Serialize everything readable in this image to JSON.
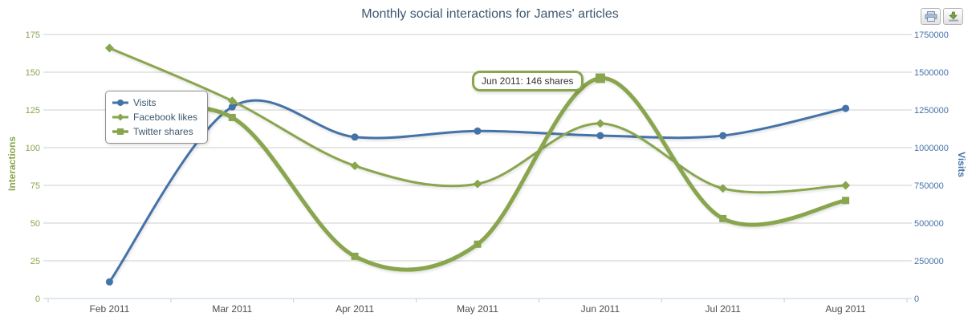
{
  "chart_data": {
    "type": "line",
    "title": "Monthly social interactions for James' articles",
    "categories": [
      "Feb 2011",
      "Mar 2011",
      "Apr 2011",
      "May 2011",
      "Jun 2011",
      "Jul 2011",
      "Aug 2011"
    ],
    "series": [
      {
        "name": "Visits",
        "yAxis": "right",
        "color": "#4572A7",
        "marker": "circle",
        "lineWidth": 3,
        "values": [
          110000,
          1270000,
          1070000,
          1110000,
          1080000,
          1080000,
          1260000
        ]
      },
      {
        "name": "Facebook likes",
        "yAxis": "left",
        "color": "#89A54E",
        "marker": "diamond",
        "lineWidth": 3,
        "values": [
          166,
          131,
          88,
          76,
          116,
          73,
          75
        ]
      },
      {
        "name": "Twitter shares",
        "yAxis": "left",
        "color": "#89A54E",
        "marker": "square",
        "lineWidth": 5,
        "values": [
          120,
          120,
          28,
          36,
          146,
          53,
          65
        ]
      }
    ],
    "axes": {
      "left": {
        "title": "Interactions",
        "min": 0,
        "max": 175,
        "tickInterval": 25,
        "color": "#89A54E"
      },
      "right": {
        "title": "Visits",
        "min": 0,
        "max": 1750000,
        "tickInterval": 250000,
        "color": "#4572A7"
      }
    },
    "tooltip": {
      "series": "Twitter shares",
      "category": "Jun 2011",
      "value": 146,
      "text": "Jun 2011: 146 shares"
    },
    "legend": {
      "position": "top-left",
      "items": [
        "Visits",
        "Facebook likes",
        "Twitter shares"
      ]
    },
    "grid": true
  },
  "toolbar": {
    "buttons": [
      {
        "name": "print",
        "icon": "print-icon"
      },
      {
        "name": "download",
        "icon": "download-icon"
      }
    ]
  },
  "colors": {
    "title": "#3E576F",
    "axis_line": "#C0D0E0",
    "grid": "#CCCCCC",
    "x_labels": "#4d4d4d"
  }
}
